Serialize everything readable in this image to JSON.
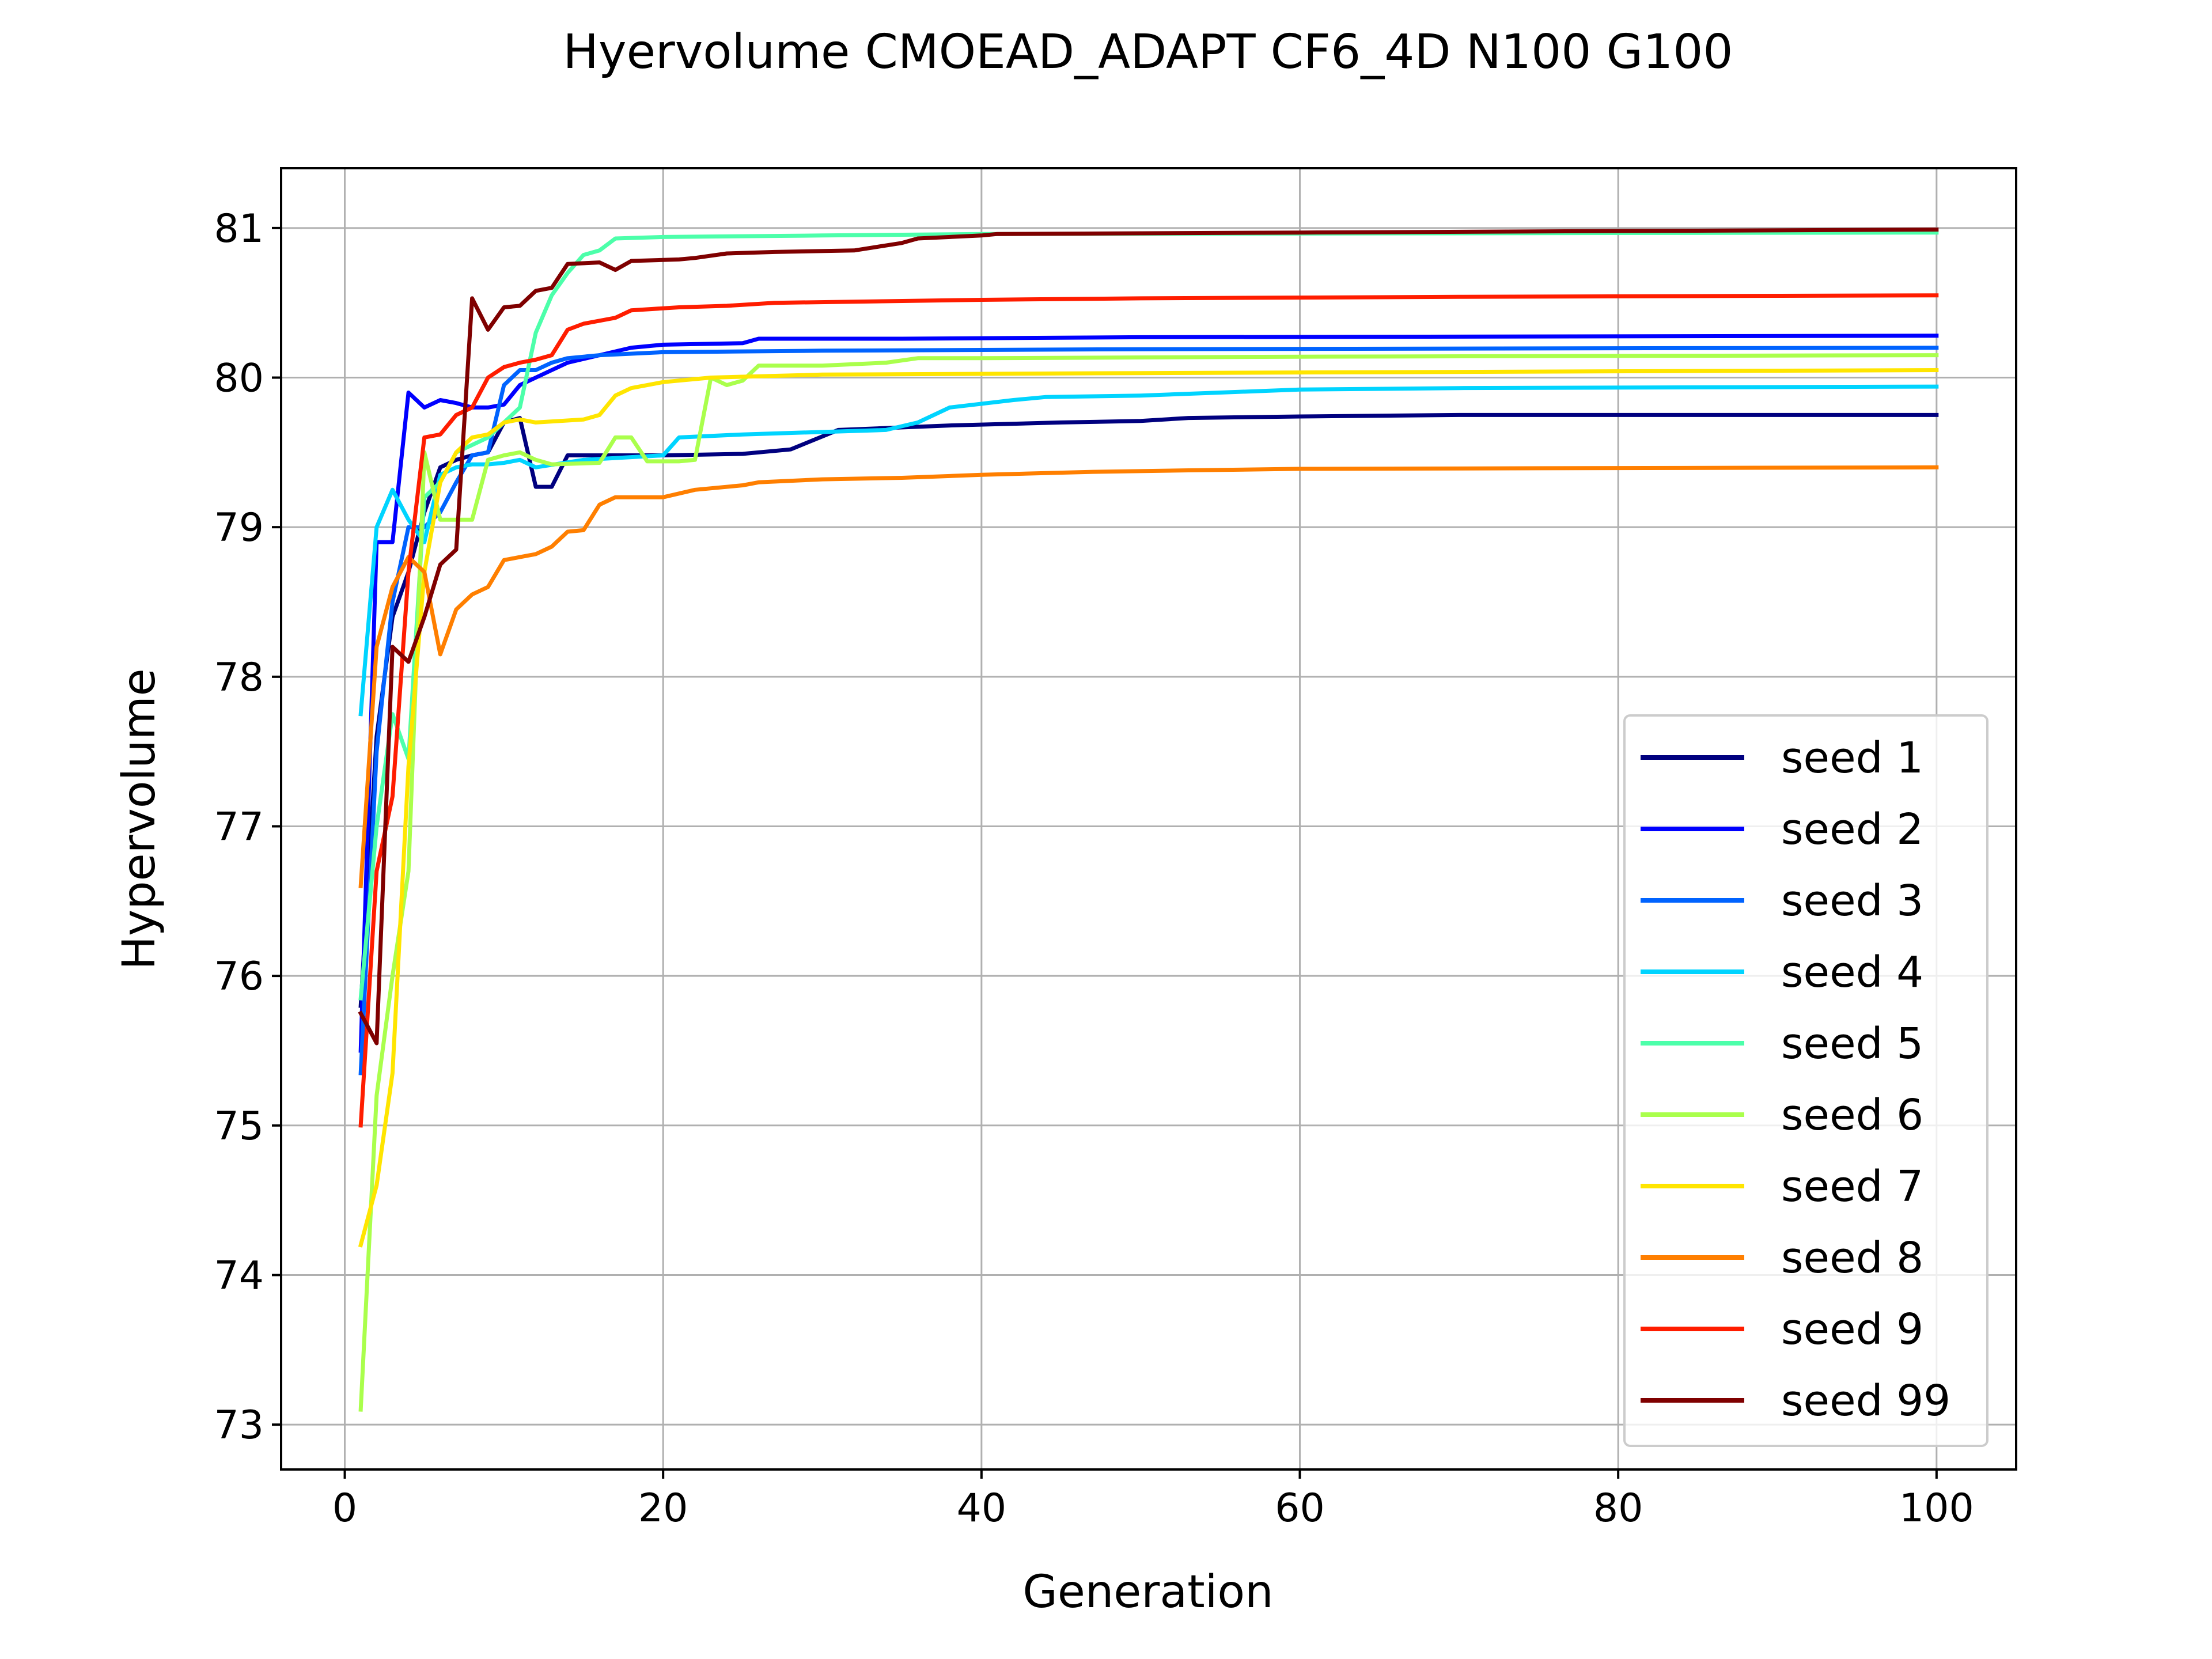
{
  "chart_data": {
    "type": "line",
    "title": "Hyervolume CMOEAD_ADAPT CF6_4D N100 G100",
    "xlabel": "Generation",
    "ylabel": "Hypervolume",
    "xlim": [
      -4,
      105
    ],
    "ylim": [
      72.7,
      81.4
    ],
    "xticks": [
      0,
      20,
      40,
      60,
      80,
      100
    ],
    "yticks": [
      73,
      74,
      75,
      76,
      77,
      78,
      79,
      80,
      81
    ],
    "grid": true,
    "legend_position": "lower-right",
    "series": [
      {
        "name": "seed 1",
        "color": "#00007f",
        "points": [
          [
            1,
            75.8
          ],
          [
            2,
            77.6
          ],
          [
            3,
            78.4
          ],
          [
            4,
            78.7
          ],
          [
            5,
            79.1
          ],
          [
            6,
            79.4
          ],
          [
            7,
            79.45
          ],
          [
            8,
            79.48
          ],
          [
            9,
            79.5
          ],
          [
            10,
            79.7
          ],
          [
            11,
            79.73
          ],
          [
            12,
            79.27
          ],
          [
            13,
            79.27
          ],
          [
            14,
            79.48
          ],
          [
            20,
            79.48
          ],
          [
            25,
            79.49
          ],
          [
            28,
            79.52
          ],
          [
            31,
            79.65
          ],
          [
            38,
            79.68
          ],
          [
            45,
            79.7
          ],
          [
            50,
            79.71
          ],
          [
            53,
            79.73
          ],
          [
            60,
            79.74
          ],
          [
            70,
            79.75
          ],
          [
            100,
            79.75
          ]
        ]
      },
      {
        "name": "seed 2",
        "color": "#0000ff",
        "points": [
          [
            1,
            75.5
          ],
          [
            2,
            78.9
          ],
          [
            3,
            78.9
          ],
          [
            4,
            79.9
          ],
          [
            5,
            79.8
          ],
          [
            6,
            79.85
          ],
          [
            7,
            79.83
          ],
          [
            8,
            79.8
          ],
          [
            9,
            79.8
          ],
          [
            10,
            79.82
          ],
          [
            11,
            79.95
          ],
          [
            12,
            80.0
          ],
          [
            13,
            80.05
          ],
          [
            14,
            80.1
          ],
          [
            16,
            80.15
          ],
          [
            18,
            80.2
          ],
          [
            20,
            80.22
          ],
          [
            25,
            80.23
          ],
          [
            26,
            80.26
          ],
          [
            35,
            80.26
          ],
          [
            50,
            80.27
          ],
          [
            100,
            80.28
          ]
        ]
      },
      {
        "name": "seed 3",
        "color": "#0063ff",
        "points": [
          [
            1,
            75.35
          ],
          [
            2,
            77.5
          ],
          [
            3,
            78.5
          ],
          [
            4,
            79.0
          ],
          [
            5,
            79.0
          ],
          [
            6,
            79.1
          ],
          [
            7,
            79.3
          ],
          [
            8,
            79.48
          ],
          [
            9,
            79.5
          ],
          [
            10,
            79.95
          ],
          [
            11,
            80.05
          ],
          [
            12,
            80.05
          ],
          [
            13,
            80.1
          ],
          [
            14,
            80.13
          ],
          [
            16,
            80.15
          ],
          [
            20,
            80.17
          ],
          [
            30,
            80.18
          ],
          [
            50,
            80.19
          ],
          [
            100,
            80.2
          ]
        ]
      },
      {
        "name": "seed 4",
        "color": "#00d4ff",
        "points": [
          [
            1,
            77.75
          ],
          [
            2,
            79.0
          ],
          [
            3,
            79.25
          ],
          [
            4,
            79.05
          ],
          [
            5,
            78.9
          ],
          [
            6,
            79.35
          ],
          [
            7,
            79.4
          ],
          [
            8,
            79.42
          ],
          [
            9,
            79.42
          ],
          [
            10,
            79.43
          ],
          [
            11,
            79.45
          ],
          [
            12,
            79.4
          ],
          [
            15,
            79.45
          ],
          [
            20,
            79.48
          ],
          [
            21,
            79.6
          ],
          [
            25,
            79.62
          ],
          [
            34,
            79.65
          ],
          [
            36,
            79.7
          ],
          [
            38,
            79.8
          ],
          [
            42,
            79.85
          ],
          [
            44,
            79.87
          ],
          [
            50,
            79.88
          ],
          [
            55,
            79.9
          ],
          [
            60,
            79.92
          ],
          [
            70,
            79.93
          ],
          [
            100,
            79.94
          ]
        ]
      },
      {
        "name": "seed 5",
        "color": "#4cffaa",
        "points": [
          [
            1,
            75.85
          ],
          [
            2,
            77.0
          ],
          [
            3,
            77.75
          ],
          [
            4,
            77.45
          ],
          [
            5,
            79.2
          ],
          [
            6,
            79.3
          ],
          [
            7,
            79.5
          ],
          [
            8,
            79.55
          ],
          [
            9,
            79.6
          ],
          [
            10,
            79.7
          ],
          [
            11,
            79.8
          ],
          [
            12,
            80.3
          ],
          [
            13,
            80.55
          ],
          [
            14,
            80.7
          ],
          [
            15,
            80.82
          ],
          [
            16,
            80.85
          ],
          [
            17,
            80.93
          ],
          [
            20,
            80.94
          ],
          [
            30,
            80.95
          ],
          [
            40,
            80.96
          ],
          [
            100,
            80.97
          ]
        ]
      },
      {
        "name": "seed 6",
        "color": "#aaff4c",
        "points": [
          [
            1,
            73.1
          ],
          [
            2,
            75.2
          ],
          [
            3,
            76.0
          ],
          [
            4,
            76.7
          ],
          [
            5,
            79.5
          ],
          [
            6,
            79.05
          ],
          [
            7,
            79.05
          ],
          [
            8,
            79.05
          ],
          [
            9,
            79.45
          ],
          [
            10,
            79.48
          ],
          [
            11,
            79.5
          ],
          [
            12,
            79.45
          ],
          [
            13,
            79.42
          ],
          [
            16,
            79.43
          ],
          [
            17,
            79.6
          ],
          [
            18,
            79.6
          ],
          [
            19,
            79.44
          ],
          [
            21,
            79.44
          ],
          [
            22,
            79.45
          ],
          [
            23,
            80.0
          ],
          [
            24,
            79.95
          ],
          [
            25,
            79.98
          ],
          [
            26,
            80.08
          ],
          [
            30,
            80.08
          ],
          [
            34,
            80.1
          ],
          [
            36,
            80.13
          ],
          [
            40,
            80.13
          ],
          [
            60,
            80.14
          ],
          [
            100,
            80.15
          ]
        ]
      },
      {
        "name": "seed 7",
        "color": "#ffe500",
        "points": [
          [
            1,
            74.2
          ],
          [
            2,
            74.6
          ],
          [
            3,
            75.35
          ],
          [
            4,
            77.4
          ],
          [
            5,
            78.7
          ],
          [
            6,
            79.3
          ],
          [
            7,
            79.5
          ],
          [
            8,
            79.6
          ],
          [
            9,
            79.62
          ],
          [
            10,
            79.7
          ],
          [
            11,
            79.72
          ],
          [
            12,
            79.7
          ],
          [
            15,
            79.72
          ],
          [
            16,
            79.75
          ],
          [
            17,
            79.88
          ],
          [
            18,
            79.93
          ],
          [
            20,
            79.97
          ],
          [
            23,
            80.0
          ],
          [
            30,
            80.02
          ],
          [
            50,
            80.03
          ],
          [
            100,
            80.05
          ]
        ]
      },
      {
        "name": "seed 8",
        "color": "#ff7f00",
        "points": [
          [
            1,
            76.6
          ],
          [
            2,
            78.2
          ],
          [
            3,
            78.6
          ],
          [
            4,
            78.8
          ],
          [
            5,
            78.7
          ],
          [
            6,
            78.15
          ],
          [
            7,
            78.45
          ],
          [
            8,
            78.55
          ],
          [
            9,
            78.6
          ],
          [
            10,
            78.78
          ],
          [
            11,
            78.8
          ],
          [
            12,
            78.82
          ],
          [
            13,
            78.87
          ],
          [
            14,
            78.97
          ],
          [
            15,
            78.98
          ],
          [
            16,
            79.15
          ],
          [
            17,
            79.2
          ],
          [
            20,
            79.2
          ],
          [
            22,
            79.25
          ],
          [
            25,
            79.28
          ],
          [
            26,
            79.3
          ],
          [
            30,
            79.32
          ],
          [
            35,
            79.33
          ],
          [
            40,
            79.35
          ],
          [
            47,
            79.37
          ],
          [
            53,
            79.38
          ],
          [
            60,
            79.39
          ],
          [
            100,
            79.4
          ]
        ]
      },
      {
        "name": "seed 9",
        "color": "#ff1d00",
        "points": [
          [
            1,
            75.0
          ],
          [
            2,
            76.7
          ],
          [
            3,
            77.2
          ],
          [
            4,
            78.7
          ],
          [
            5,
            79.6
          ],
          [
            6,
            79.62
          ],
          [
            7,
            79.75
          ],
          [
            8,
            79.8
          ],
          [
            9,
            80.0
          ],
          [
            10,
            80.07
          ],
          [
            11,
            80.1
          ],
          [
            12,
            80.12
          ],
          [
            13,
            80.15
          ],
          [
            14,
            80.32
          ],
          [
            15,
            80.36
          ],
          [
            17,
            80.4
          ],
          [
            18,
            80.45
          ],
          [
            21,
            80.47
          ],
          [
            24,
            80.48
          ],
          [
            27,
            80.5
          ],
          [
            40,
            80.52
          ],
          [
            50,
            80.53
          ],
          [
            70,
            80.54
          ],
          [
            100,
            80.55
          ]
        ]
      },
      {
        "name": "seed 99",
        "color": "#7f0000",
        "points": [
          [
            1,
            75.75
          ],
          [
            2,
            75.55
          ],
          [
            3,
            78.2
          ],
          [
            4,
            78.1
          ],
          [
            5,
            78.4
          ],
          [
            6,
            78.75
          ],
          [
            7,
            78.85
          ],
          [
            8,
            80.53
          ],
          [
            9,
            80.32
          ],
          [
            10,
            80.47
          ],
          [
            11,
            80.48
          ],
          [
            12,
            80.58
          ],
          [
            13,
            80.6
          ],
          [
            14,
            80.76
          ],
          [
            16,
            80.77
          ],
          [
            17,
            80.72
          ],
          [
            18,
            80.78
          ],
          [
            21,
            80.79
          ],
          [
            22,
            80.8
          ],
          [
            24,
            80.83
          ],
          [
            27,
            80.84
          ],
          [
            32,
            80.85
          ],
          [
            35,
            80.9
          ],
          [
            36,
            80.93
          ],
          [
            40,
            80.95
          ],
          [
            41,
            80.96
          ],
          [
            60,
            80.97
          ],
          [
            100,
            80.99
          ]
        ]
      }
    ]
  }
}
